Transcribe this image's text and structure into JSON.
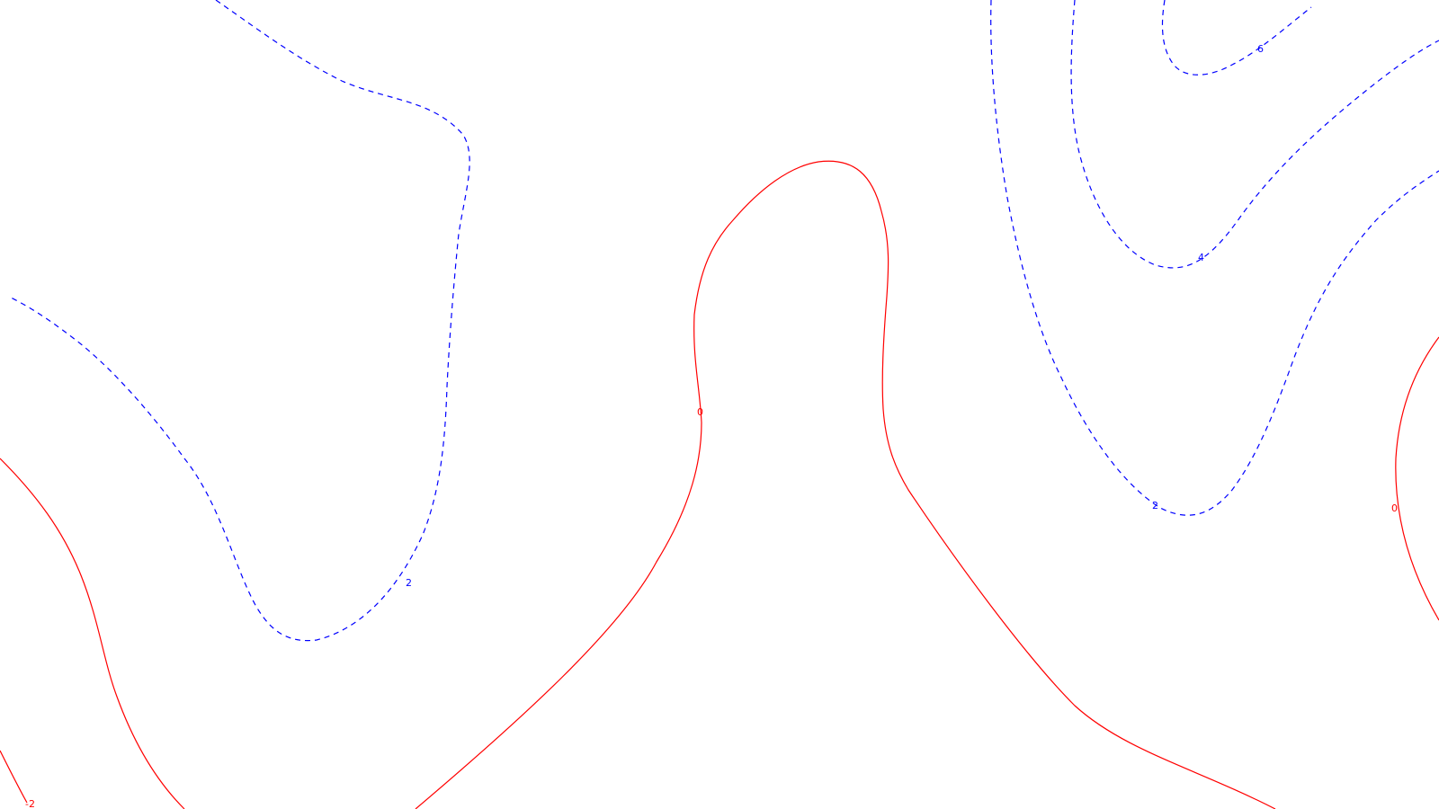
{
  "map": {
    "colors": {
      "positive": "#0000ff",
      "zero": "#ff0000",
      "negative": "#ff0000",
      "background": "#ffffff"
    },
    "contour_labels": {
      "pos2_upper_left": "2",
      "zero_center": "0",
      "pos6_top_right": "6",
      "pos4_right": "4",
      "pos2_right": "2",
      "zero_right": "0",
      "neg2_lower_left": "-2"
    }
  }
}
